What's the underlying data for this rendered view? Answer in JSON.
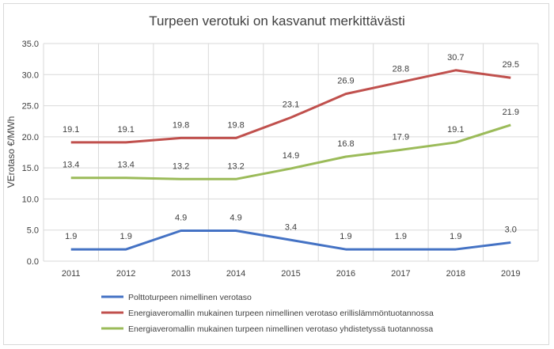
{
  "chart_data": {
    "type": "line",
    "title": "Turpeen verotuki on kasvanut merkittävästi",
    "ylabel": "VErotaso €/MWh",
    "xlabel": "",
    "categories": [
      "2011",
      "2012",
      "2013",
      "2014",
      "2015",
      "2016",
      "2017",
      "2018",
      "2019"
    ],
    "ylim": [
      0,
      35
    ],
    "yticks": [
      "0.0",
      "5.0",
      "10.0",
      "15.0",
      "20.0",
      "25.0",
      "30.0",
      "35.0"
    ],
    "grid": true,
    "legend_position": "bottom",
    "series": [
      {
        "name": "Polttoturpeen nimellinen verotaso",
        "color": "#4472c4",
        "values": [
          1.9,
          1.9,
          4.9,
          4.9,
          3.4,
          1.9,
          1.9,
          1.9,
          3.0
        ],
        "labels": [
          "1.9",
          "1.9",
          "4.9",
          "4.9",
          "3.4",
          "1.9",
          "1.9",
          "1.9",
          "3.0"
        ]
      },
      {
        "name": "Energiaveromallin mukainen turpeen nimellinen verotaso erillislämmöntuotannossa",
        "color": "#c0504d",
        "values": [
          19.1,
          19.1,
          19.8,
          19.8,
          23.1,
          26.9,
          28.8,
          30.7,
          29.5
        ],
        "labels": [
          "19.1",
          "19.1",
          "19.8",
          "19.8",
          "23.1",
          "26.9",
          "28.8",
          "30.7",
          "29.5"
        ]
      },
      {
        "name": "Energiaveromallin mukainen turpeen nimellinen verotaso yhdistetyssä tuotannossa",
        "color": "#9bbb59",
        "values": [
          13.4,
          13.4,
          13.2,
          13.2,
          14.9,
          16.8,
          17.9,
          19.1,
          21.9
        ],
        "labels": [
          "13.4",
          "13.4",
          "13.2",
          "13.2",
          "14.9",
          "16.8",
          "17.9",
          "19.1",
          "21.9"
        ]
      }
    ]
  }
}
